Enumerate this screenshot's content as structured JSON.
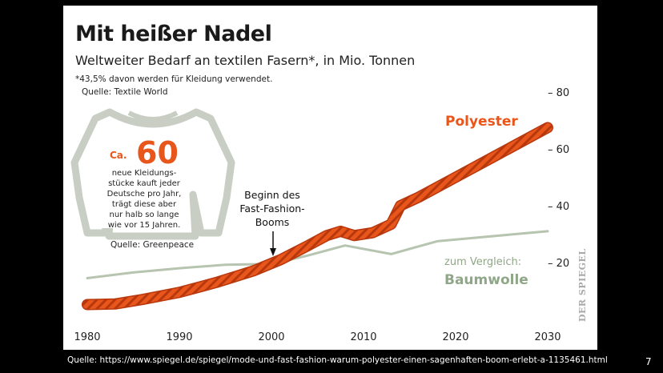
{
  "chart_data": {
    "type": "line",
    "title": "Mit heißer Nadel",
    "subtitle": "Weltweiter Bedarf an textilen Fasern*, in Mio. Tonnen",
    "footnote": "*43,5% davon werden für Kleidung verwendet.",
    "source": "Quelle: Textile World",
    "x_ticks": [
      1980,
      1990,
      2000,
      2010,
      2020,
      2030
    ],
    "y_ticks": [
      20,
      40,
      60,
      80
    ],
    "y_tick_labels": [
      "– 20",
      "– 40",
      "– 60",
      "– 80"
    ],
    "xlim": [
      1980,
      2030
    ],
    "ylim": [
      5,
      85
    ],
    "series": [
      {
        "name": "Polyester",
        "color": "#e8561c",
        "x": [
          1980,
          1983,
          1986,
          1990,
          1994,
          1998,
          2001,
          2004,
          2006,
          2007.5,
          2009,
          2011,
          2013,
          2014,
          2016,
          2020,
          2024,
          2028,
          2030
        ],
        "y": [
          5.2,
          5.4,
          7.0,
          9.5,
          13.0,
          17.0,
          21.0,
          26.0,
          29.5,
          31.0,
          29.5,
          30.5,
          33.5,
          40.0,
          43.0,
          50.0,
          57.0,
          64.0,
          67.5
        ]
      },
      {
        "name": "Baumwolle",
        "name_prefix": "zum Vergleich:",
        "color": "#b7c4b0",
        "x": [
          1980,
          1985,
          1990,
          1995,
          2000,
          2004,
          2008,
          2013,
          2018,
          2023,
          2030
        ],
        "y": [
          14.5,
          16.5,
          18.0,
          19.2,
          19.5,
          22.5,
          26.0,
          23.0,
          27.5,
          29.0,
          31.0
        ]
      }
    ],
    "annotations": [
      {
        "lines": [
          "Beginn des",
          "Fast-Fashion-",
          "Booms"
        ],
        "x": 2000
      }
    ]
  },
  "shirt_box": {
    "prefix": "Ca.",
    "number": "60",
    "lines": [
      "neue Kleidungs-",
      "stücke kauft jeder",
      "Deutsche pro Jahr,",
      "trägt diese aber",
      "nur halb so lange",
      "wie vor 15 Jahren."
    ],
    "source": "Quelle: Greenpeace"
  },
  "brand": "DER SPIEGEL",
  "footer": {
    "source": "Quelle: https://www.spiegel.de/spiegel/mode-und-fast-fashion-warum-polyester-einen-sagenhaften-boom-erlebt-a-1135461.html",
    "page_number": "7"
  }
}
